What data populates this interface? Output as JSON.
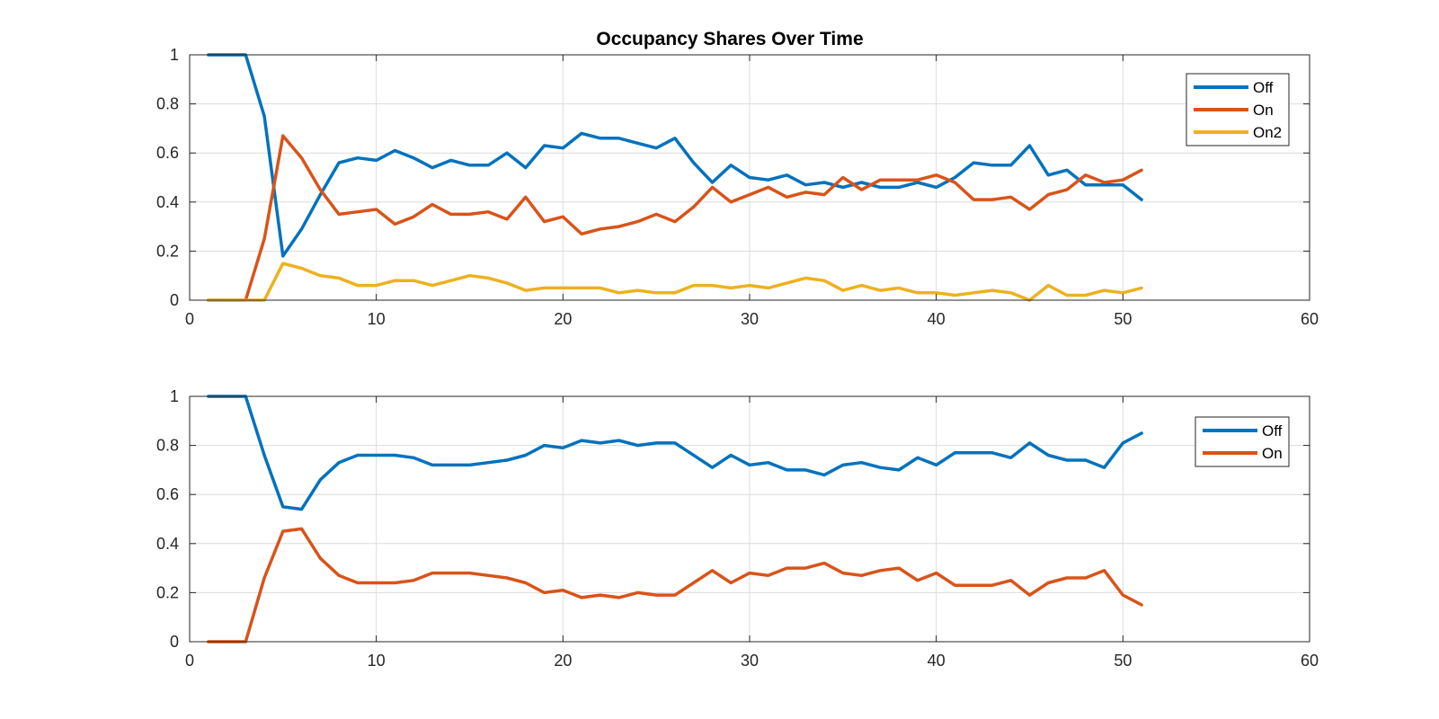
{
  "chart_data": [
    {
      "type": "line",
      "title": "Occupancy Shares Over Time",
      "xlabel": "",
      "ylabel": "",
      "xlim": [
        0,
        60
      ],
      "ylim": [
        0,
        1
      ],
      "xticks": [
        0,
        10,
        20,
        30,
        40,
        50,
        60
      ],
      "yticks": [
        0,
        0.2,
        0.4,
        0.6,
        0.8,
        1
      ],
      "grid": true,
      "legend_position": "top-right",
      "x": [
        1,
        2,
        3,
        4,
        5,
        6,
        7,
        8,
        9,
        10,
        11,
        12,
        13,
        14,
        15,
        16,
        17,
        18,
        19,
        20,
        21,
        22,
        23,
        24,
        25,
        26,
        27,
        28,
        29,
        30,
        31,
        32,
        33,
        34,
        35,
        36,
        37,
        38,
        39,
        40,
        41,
        42,
        43,
        44,
        45,
        46,
        47,
        48,
        49,
        50,
        51
      ],
      "series": [
        {
          "name": "Off",
          "color": "#0072bd",
          "values": [
            1.0,
            1.0,
            1.0,
            0.75,
            0.18,
            0.29,
            0.43,
            0.56,
            0.58,
            0.57,
            0.61,
            0.58,
            0.54,
            0.57,
            0.55,
            0.55,
            0.6,
            0.54,
            0.63,
            0.62,
            0.68,
            0.66,
            0.66,
            0.64,
            0.62,
            0.66,
            0.56,
            0.48,
            0.55,
            0.5,
            0.49,
            0.51,
            0.47,
            0.48,
            0.46,
            0.48,
            0.46,
            0.46,
            0.48,
            0.46,
            0.5,
            0.56,
            0.55,
            0.55,
            0.63,
            0.51,
            0.53,
            0.47,
            0.47,
            0.47,
            0.41
          ]
        },
        {
          "name": "On",
          "color": "#d95319",
          "values": [
            0.0,
            0.0,
            0.0,
            0.25,
            0.67,
            0.58,
            0.45,
            0.35,
            0.36,
            0.37,
            0.31,
            0.34,
            0.39,
            0.35,
            0.35,
            0.36,
            0.33,
            0.42,
            0.32,
            0.34,
            0.27,
            0.29,
            0.3,
            0.32,
            0.35,
            0.32,
            0.38,
            0.46,
            0.4,
            0.43,
            0.46,
            0.42,
            0.44,
            0.43,
            0.5,
            0.45,
            0.49,
            0.49,
            0.49,
            0.51,
            0.48,
            0.41,
            0.41,
            0.42,
            0.37,
            0.43,
            0.45,
            0.51,
            0.48,
            0.49,
            0.53
          ]
        },
        {
          "name": "On2",
          "color": "#edb120",
          "values": [
            0.0,
            0.0,
            0.0,
            0.0,
            0.15,
            0.13,
            0.1,
            0.09,
            0.06,
            0.06,
            0.08,
            0.08,
            0.06,
            0.08,
            0.1,
            0.09,
            0.07,
            0.04,
            0.05,
            0.05,
            0.05,
            0.05,
            0.03,
            0.04,
            0.03,
            0.03,
            0.06,
            0.06,
            0.05,
            0.06,
            0.05,
            0.07,
            0.09,
            0.08,
            0.04,
            0.06,
            0.04,
            0.05,
            0.03,
            0.03,
            0.02,
            0.03,
            0.04,
            0.03,
            0.0,
            0.06,
            0.02,
            0.02,
            0.04,
            0.03,
            0.05
          ]
        }
      ]
    },
    {
      "type": "line",
      "title": "",
      "xlabel": "",
      "ylabel": "",
      "xlim": [
        0,
        60
      ],
      "ylim": [
        0,
        1
      ],
      "xticks": [
        0,
        10,
        20,
        30,
        40,
        50,
        60
      ],
      "yticks": [
        0,
        0.2,
        0.4,
        0.6,
        0.8,
        1
      ],
      "grid": true,
      "legend_position": "top-right",
      "x": [
        1,
        2,
        3,
        4,
        5,
        6,
        7,
        8,
        9,
        10,
        11,
        12,
        13,
        14,
        15,
        16,
        17,
        18,
        19,
        20,
        21,
        22,
        23,
        24,
        25,
        26,
        27,
        28,
        29,
        30,
        31,
        32,
        33,
        34,
        35,
        36,
        37,
        38,
        39,
        40,
        41,
        42,
        43,
        44,
        45,
        46,
        47,
        48,
        49,
        50,
        51
      ],
      "series": [
        {
          "name": "Off",
          "color": "#0072bd",
          "values": [
            1.0,
            1.0,
            1.0,
            0.76,
            0.55,
            0.54,
            0.66,
            0.73,
            0.76,
            0.76,
            0.76,
            0.75,
            0.72,
            0.72,
            0.72,
            0.73,
            0.74,
            0.76,
            0.8,
            0.79,
            0.82,
            0.81,
            0.82,
            0.8,
            0.81,
            0.81,
            0.76,
            0.71,
            0.76,
            0.72,
            0.73,
            0.7,
            0.7,
            0.68,
            0.72,
            0.73,
            0.71,
            0.7,
            0.75,
            0.72,
            0.77,
            0.77,
            0.77,
            0.75,
            0.81,
            0.76,
            0.74,
            0.74,
            0.71,
            0.81,
            0.85
          ]
        },
        {
          "name": "On",
          "color": "#d95319",
          "values": [
            0.0,
            0.0,
            0.0,
            0.26,
            0.45,
            0.46,
            0.34,
            0.27,
            0.24,
            0.24,
            0.24,
            0.25,
            0.28,
            0.28,
            0.28,
            0.27,
            0.26,
            0.24,
            0.2,
            0.21,
            0.18,
            0.19,
            0.18,
            0.2,
            0.19,
            0.19,
            0.24,
            0.29,
            0.24,
            0.28,
            0.27,
            0.3,
            0.3,
            0.32,
            0.28,
            0.27,
            0.29,
            0.3,
            0.25,
            0.28,
            0.23,
            0.23,
            0.23,
            0.25,
            0.19,
            0.24,
            0.26,
            0.26,
            0.29,
            0.19,
            0.15
          ]
        }
      ]
    }
  ]
}
